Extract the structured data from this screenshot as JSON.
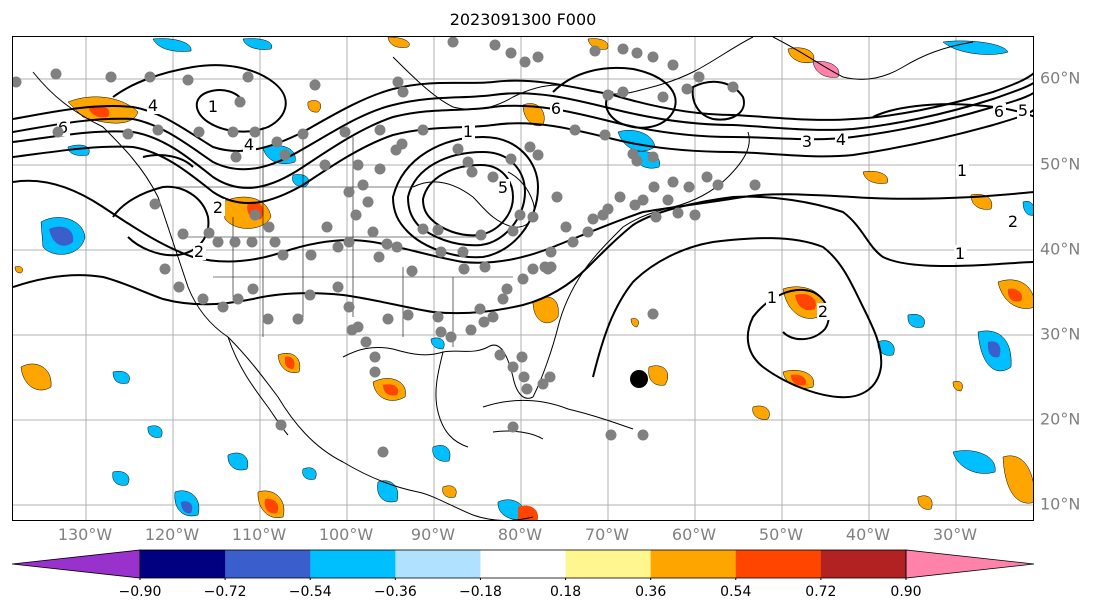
{
  "title": "2023091300 F000",
  "lon_labels": [
    "130°W",
    "120°W",
    "110°W",
    "100°W",
    "90°W",
    "80°W",
    "70°W",
    "60°W",
    "50°W",
    "40°W",
    "30°W"
  ],
  "lat_labels": [
    "60°N",
    "50°N",
    "40°N",
    "30°N",
    "20°N",
    "10°N"
  ],
  "contour_labels": [
    "6",
    "4",
    "2",
    "4",
    "1",
    "6",
    "5",
    "3",
    "4",
    "6",
    "5",
    "1",
    "2",
    "1",
    "2",
    "1",
    "2",
    "1"
  ],
  "colorbar": {
    "ticks": [
      "−0.90",
      "−0.72",
      "−0.54",
      "−0.36",
      "−0.18",
      "0.18",
      "0.36",
      "0.54",
      "0.72",
      "0.90"
    ],
    "colors": [
      "#9932cc",
      "#000080",
      "#3a5fcd",
      "#00bfff",
      "#b0e2ff",
      "#ffffff",
      "#fff68f",
      "#ffa500",
      "#ff4500",
      "#b22222",
      "#ff82ab"
    ],
    "extend": "both"
  },
  "grid": true,
  "colors": {
    "station": "#808080",
    "contour": "#000000",
    "grid": "#b0b0b0",
    "storm_center": "#000000"
  }
}
